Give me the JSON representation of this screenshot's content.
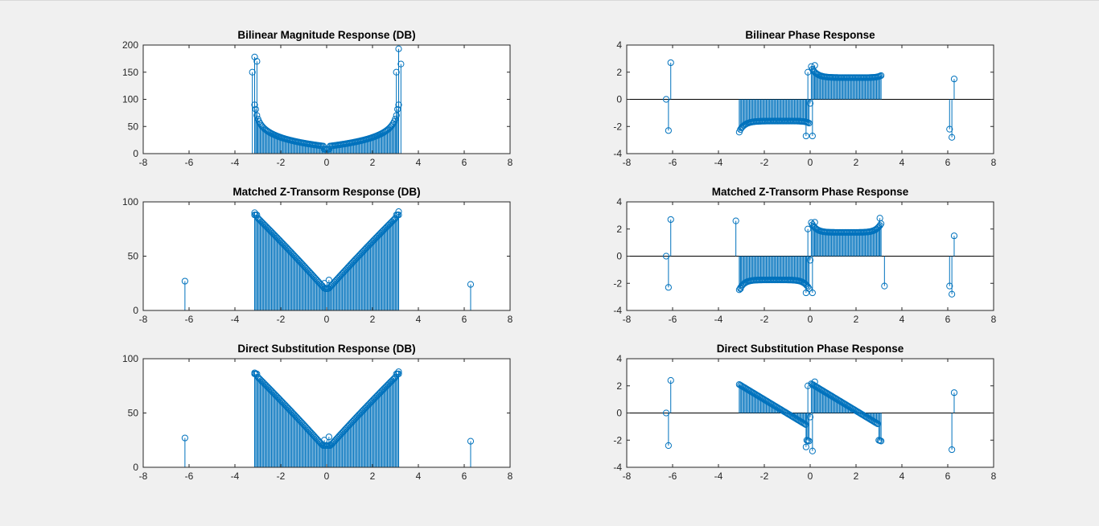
{
  "colors": {
    "series": "#0072bd",
    "axis": "#262626",
    "plot_bg": "#ffffff",
    "figure_bg": "#f0f0f0"
  },
  "chart_data": [
    {
      "type": "stem",
      "title": "Bilinear Magnitude Response (DB)",
      "xlim": [
        -8,
        8
      ],
      "ylim": [
        0,
        200
      ],
      "xticks": [
        -8,
        -6,
        -4,
        -2,
        0,
        2,
        4,
        6,
        8
      ],
      "yticks": [
        0,
        50,
        100,
        150,
        200
      ],
      "ytick_labels": [
        "0",
        "50",
        "100",
        "150",
        "200"
      ],
      "shape": "bilinear_mag",
      "x": [
        -6.28,
        0,
        6.28
      ],
      "y": [
        1,
        4,
        13
      ],
      "points": [
        [
          -3.24,
          150
        ],
        [
          -3.14,
          178
        ],
        [
          -3.04,
          170
        ],
        [
          3.04,
          150
        ],
        [
          3.14,
          193
        ],
        [
          3.24,
          165
        ]
      ]
    },
    {
      "type": "stem",
      "title": "Bilinear Phase Response",
      "xlim": [
        -8,
        8
      ],
      "ylim": [
        -4,
        4
      ],
      "xticks": [
        -8,
        -6,
        -4,
        -2,
        0,
        2,
        4,
        6,
        8
      ],
      "yticks": [
        -4,
        -2,
        0,
        2,
        4
      ],
      "ytick_labels": [
        "-4",
        "-2",
        "0",
        "2",
        "4"
      ],
      "shape": "bilinear_phase",
      "points": [
        [
          -6.28,
          0
        ],
        [
          -6.18,
          -2.3
        ],
        [
          -6.08,
          2.7
        ],
        [
          -0.18,
          -2.7
        ],
        [
          -0.1,
          2.0
        ],
        [
          0,
          -0.3
        ],
        [
          0.1,
          -2.7
        ],
        [
          0.2,
          2.5
        ],
        [
          6.08,
          -2.2
        ],
        [
          6.18,
          -2.8
        ],
        [
          6.28,
          1.5
        ]
      ]
    },
    {
      "type": "stem",
      "title": "Matched Z-Transorm Response (DB)",
      "xlim": [
        -8,
        8
      ],
      "ylim": [
        0,
        100
      ],
      "xticks": [
        -8,
        -6,
        -4,
        -2,
        0,
        2,
        4,
        6,
        8
      ],
      "yticks": [
        0,
        50,
        100
      ],
      "ytick_labels": [
        "0",
        "50",
        "100"
      ],
      "shape": "matched_mag",
      "points": [
        [
          -6.18,
          27
        ],
        [
          -3.14,
          90
        ],
        [
          3.14,
          91
        ],
        [
          0.1,
          28
        ],
        [
          -0.1,
          25
        ],
        [
          6.28,
          24
        ]
      ]
    },
    {
      "type": "stem",
      "title": "Matched Z-Transorm Phase Response",
      "xlim": [
        -8,
        8
      ],
      "ylim": [
        -4,
        4
      ],
      "xticks": [
        -8,
        -6,
        -4,
        -2,
        0,
        2,
        4,
        6,
        8
      ],
      "yticks": [
        -4,
        -2,
        0,
        2,
        4
      ],
      "ytick_labels": [
        "-4",
        "-2",
        "0",
        "2",
        "4"
      ],
      "shape": "matched_phase",
      "points": [
        [
          -6.28,
          0
        ],
        [
          -6.18,
          -2.3
        ],
        [
          -6.08,
          2.7
        ],
        [
          -3.24,
          2.6
        ],
        [
          -3.04,
          -2.4
        ],
        [
          -0.18,
          -2.7
        ],
        [
          -0.1,
          2.0
        ],
        [
          0,
          -0.3
        ],
        [
          0.1,
          -2.7
        ],
        [
          0.2,
          2.5
        ],
        [
          3.04,
          2.8
        ],
        [
          3.24,
          -2.2
        ],
        [
          6.08,
          -2.2
        ],
        [
          6.18,
          -2.8
        ],
        [
          6.28,
          1.5
        ]
      ]
    },
    {
      "type": "stem",
      "title": "Direct Substitution Response (DB)",
      "xlim": [
        -8,
        8
      ],
      "ylim": [
        0,
        100
      ],
      "xticks": [
        -8,
        -6,
        -4,
        -2,
        0,
        2,
        4,
        6,
        8
      ],
      "yticks": [
        0,
        50,
        100
      ],
      "ytick_labels": [
        "0",
        "50",
        "100"
      ],
      "shape": "direct_mag",
      "points": [
        [
          -6.18,
          27
        ],
        [
          -3.14,
          87
        ],
        [
          3.14,
          88
        ],
        [
          0.1,
          28
        ],
        [
          -0.1,
          25
        ],
        [
          6.28,
          24
        ]
      ]
    },
    {
      "type": "stem",
      "title": "Direct Substitution Phase Response",
      "xlim": [
        -8,
        8
      ],
      "ylim": [
        -4,
        4
      ],
      "xticks": [
        -8,
        -6,
        -4,
        -2,
        0,
        2,
        4,
        6,
        8
      ],
      "yticks": [
        -4,
        -2,
        0,
        2,
        4
      ],
      "ytick_labels": [
        "-4",
        "-2",
        "0",
        "2",
        "4"
      ],
      "shape": "direct_phase",
      "points": [
        [
          -6.28,
          0
        ],
        [
          -6.18,
          -2.4
        ],
        [
          -6.08,
          2.4
        ],
        [
          -0.18,
          -2.5
        ],
        [
          -0.1,
          2.0
        ],
        [
          0,
          -0.3
        ],
        [
          0.1,
          -2.8
        ],
        [
          0.2,
          2.3
        ],
        [
          6.18,
          -2.7
        ],
        [
          6.28,
          1.5
        ]
      ]
    }
  ]
}
